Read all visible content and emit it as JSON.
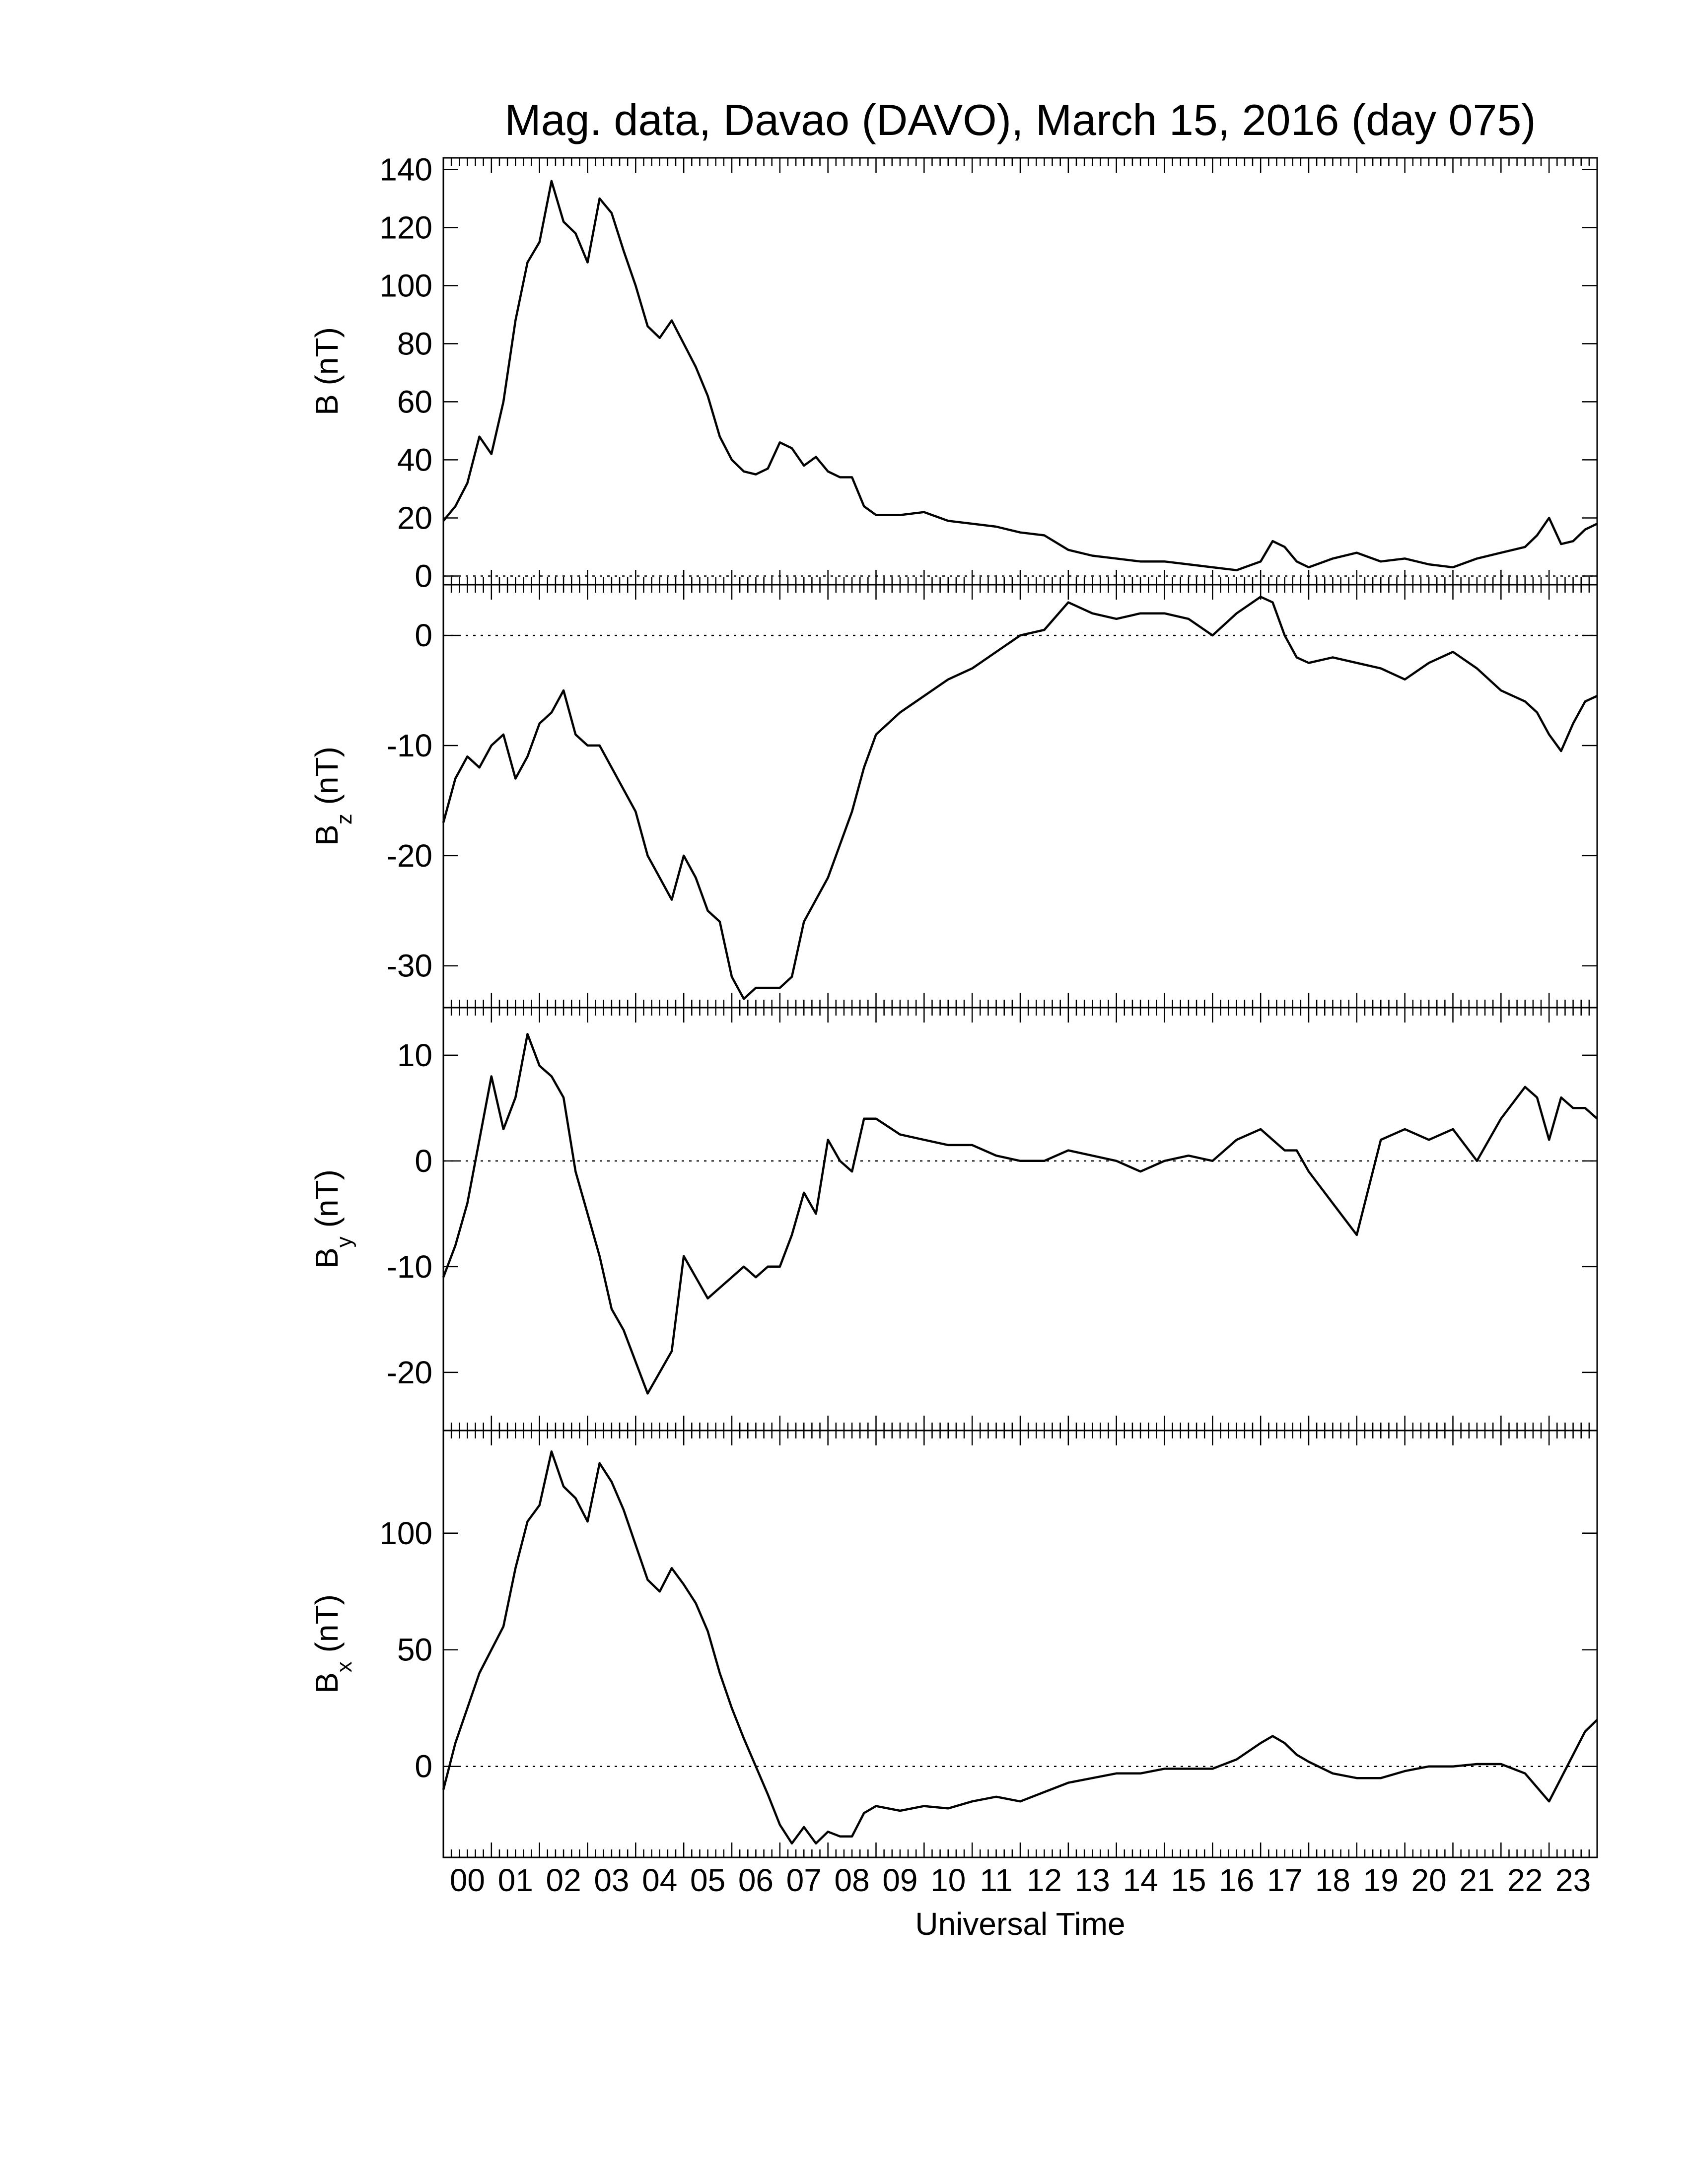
{
  "chart_data": {
    "type": "line",
    "title": "Mag. data, Davao (DAVO), March 15, 2016 (day 075)",
    "xlabel": "Universal Time",
    "x_unit": "hours UT",
    "xlim": [
      0,
      24
    ],
    "x_tick_labels": [
      "00",
      "01",
      "02",
      "03",
      "04",
      "05",
      "06",
      "07",
      "08",
      "09",
      "10",
      "11",
      "12",
      "13",
      "14",
      "15",
      "16",
      "17",
      "18",
      "19",
      "20",
      "21",
      "22",
      "23"
    ],
    "zero_line": "dotted",
    "panels": [
      {
        "id": "B",
        "ylabel_main": "B",
        "ylabel_sub": "",
        "ylabel_unit": " (nT)",
        "ylim": [
          -3,
          144
        ],
        "yticks": [
          0,
          20,
          40,
          60,
          80,
          100,
          120,
          140
        ],
        "x": [
          0,
          0.25,
          0.5,
          0.75,
          1,
          1.25,
          1.5,
          1.75,
          2,
          2.25,
          2.5,
          2.75,
          3,
          3.25,
          3.5,
          3.75,
          4,
          4.25,
          4.5,
          4.75,
          5,
          5.25,
          5.5,
          5.75,
          6,
          6.25,
          6.5,
          6.75,
          7,
          7.25,
          7.5,
          7.75,
          8,
          8.25,
          8.5,
          8.75,
          9,
          9.5,
          10,
          10.5,
          11,
          11.5,
          12,
          12.5,
          13,
          13.5,
          14,
          14.5,
          15,
          15.5,
          16,
          16.5,
          17,
          17.25,
          17.5,
          17.75,
          18,
          18.5,
          19,
          19.5,
          20,
          20.5,
          21,
          21.5,
          22,
          22.5,
          22.75,
          23,
          23.25,
          23.5,
          23.75,
          24
        ],
        "y": [
          19,
          24,
          32,
          48,
          42,
          60,
          88,
          108,
          115,
          136,
          122,
          118,
          108,
          130,
          125,
          112,
          100,
          86,
          82,
          88,
          80,
          72,
          62,
          48,
          40,
          36,
          35,
          37,
          46,
          44,
          38,
          41,
          36,
          34,
          34,
          24,
          21,
          21,
          22,
          19,
          18,
          17,
          15,
          14,
          9,
          7,
          6,
          5,
          5,
          4,
          3,
          2,
          5,
          12,
          10,
          5,
          3,
          6,
          8,
          5,
          6,
          4,
          3,
          6,
          8,
          10,
          14,
          20,
          11,
          12,
          16,
          18
        ]
      },
      {
        "id": "Bz",
        "ylabel_main": "B",
        "ylabel_sub": "z",
        "ylabel_unit": " (nT)",
        "ylim": [
          -33.8,
          4.6
        ],
        "yticks": [
          0,
          -10,
          -20,
          -30
        ],
        "x": [
          0,
          0.25,
          0.5,
          0.75,
          1,
          1.25,
          1.5,
          1.75,
          2,
          2.25,
          2.5,
          2.75,
          3,
          3.25,
          3.5,
          3.75,
          4,
          4.25,
          4.5,
          4.75,
          5,
          5.25,
          5.5,
          5.75,
          6,
          6.25,
          6.5,
          6.75,
          7,
          7.25,
          7.5,
          7.75,
          8,
          8.25,
          8.5,
          8.75,
          9,
          9.5,
          10,
          10.5,
          11,
          11.5,
          12,
          12.5,
          13,
          13.5,
          14,
          14.5,
          15,
          15.5,
          16,
          16.5,
          17,
          17.25,
          17.5,
          17.75,
          18,
          18.5,
          19,
          19.5,
          20,
          20.5,
          21,
          21.5,
          22,
          22.5,
          22.75,
          23,
          23.25,
          23.5,
          23.75,
          24
        ],
        "y": [
          -17,
          -13,
          -11,
          -12,
          -10,
          -9,
          -13,
          -11,
          -8,
          -7,
          -5,
          -9,
          -10,
          -10,
          -12,
          -14,
          -16,
          -20,
          -22,
          -24,
          -20,
          -22,
          -25,
          -26,
          -31,
          -33,
          -32,
          -32,
          -32,
          -31,
          -26,
          -24,
          -22,
          -19,
          -16,
          -12,
          -9,
          -7,
          -5.5,
          -4,
          -3,
          -1.5,
          0,
          0.5,
          3,
          2,
          1.5,
          2,
          2,
          1.5,
          0,
          2,
          3.5,
          3,
          0,
          -2,
          -2.5,
          -2,
          -2.5,
          -3,
          -4,
          -2.5,
          -1.5,
          -3,
          -5,
          -6,
          -7,
          -9,
          -10.5,
          -8,
          -6,
          -5.5
        ]
      },
      {
        "id": "By",
        "ylabel_main": "B",
        "ylabel_sub": "y",
        "ylabel_unit": " (nT)",
        "ylim": [
          -25.5,
          14.5
        ],
        "yticks": [
          10,
          0,
          -10,
          -20
        ],
        "x": [
          0,
          0.25,
          0.5,
          0.75,
          1,
          1.25,
          1.5,
          1.75,
          2,
          2.25,
          2.5,
          2.75,
          3,
          3.25,
          3.5,
          3.75,
          4,
          4.25,
          4.5,
          4.75,
          5,
          5.25,
          5.5,
          5.75,
          6,
          6.25,
          6.5,
          6.75,
          7,
          7.25,
          7.5,
          7.75,
          8,
          8.25,
          8.5,
          8.75,
          9,
          9.5,
          10,
          10.5,
          11,
          11.5,
          12,
          12.5,
          13,
          13.5,
          14,
          14.5,
          15,
          15.5,
          16,
          16.5,
          17,
          17.25,
          17.5,
          17.75,
          18,
          18.5,
          19,
          19.5,
          20,
          20.5,
          21,
          21.5,
          22,
          22.5,
          22.75,
          23,
          23.25,
          23.5,
          23.75,
          24
        ],
        "y": [
          -11,
          -8,
          -4,
          2,
          8,
          3,
          6,
          12,
          9,
          8,
          6,
          -1,
          -5,
          -9,
          -14,
          -16,
          -19,
          -22,
          -20,
          -18,
          -9,
          -11,
          -13,
          -12,
          -11,
          -10,
          -11,
          -10,
          -10,
          -7,
          -3,
          -5,
          2,
          0,
          -1,
          4,
          4,
          2.5,
          2,
          1.5,
          1.5,
          0.5,
          0,
          0,
          1,
          0.5,
          0,
          -1,
          0,
          0.5,
          0,
          2,
          3,
          2,
          1,
          1,
          -1,
          -4,
          -7,
          2,
          3,
          2,
          3,
          0,
          4,
          7,
          6,
          2,
          6,
          5,
          5,
          4
        ]
      },
      {
        "id": "Bx",
        "ylabel_main": "B",
        "ylabel_sub": "x",
        "ylabel_unit": " (nT)",
        "ylim": [
          -39,
          144
        ],
        "yticks": [
          100,
          50,
          0
        ],
        "x": [
          0,
          0.25,
          0.5,
          0.75,
          1,
          1.25,
          1.5,
          1.75,
          2,
          2.25,
          2.5,
          2.75,
          3,
          3.25,
          3.5,
          3.75,
          4,
          4.25,
          4.5,
          4.75,
          5,
          5.25,
          5.5,
          5.75,
          6,
          6.25,
          6.5,
          6.75,
          7,
          7.25,
          7.5,
          7.75,
          8,
          8.25,
          8.5,
          8.75,
          9,
          9.5,
          10,
          10.5,
          11,
          11.5,
          12,
          12.5,
          13,
          13.5,
          14,
          14.5,
          15,
          15.5,
          16,
          16.5,
          17,
          17.25,
          17.5,
          17.75,
          18,
          18.5,
          19,
          19.5,
          20,
          20.5,
          21,
          21.5,
          22,
          22.5,
          22.75,
          23,
          23.25,
          23.5,
          23.75,
          24
        ],
        "y": [
          -10,
          10,
          25,
          40,
          50,
          60,
          85,
          105,
          112,
          135,
          120,
          115,
          105,
          130,
          122,
          110,
          95,
          80,
          75,
          85,
          78,
          70,
          58,
          40,
          25,
          12,
          0,
          -12,
          -25,
          -33,
          -26,
          -33,
          -28,
          -30,
          -30,
          -20,
          -17,
          -19,
          -17,
          -18,
          -15,
          -13,
          -15,
          -11,
          -7,
          -5,
          -3,
          -3,
          -1,
          -1,
          -1,
          3,
          10,
          13,
          10,
          5,
          2,
          -3,
          -5,
          -5,
          -2,
          0,
          0,
          1,
          1,
          -3,
          -9,
          -15,
          -5,
          5,
          15,
          20
        ]
      }
    ]
  }
}
